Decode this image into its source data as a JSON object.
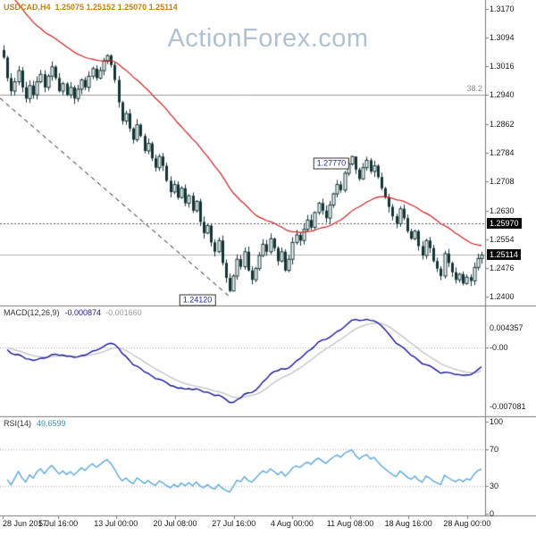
{
  "window": {
    "title_symbol": "USDCAD,H4",
    "title_ohlc": "1.25075 1.25152 1.25070 1.25114",
    "watermark": "ActionForex.com"
  },
  "chart_data": {
    "type": "candlestick",
    "symbol": "USDCAD",
    "timeframe": "H4",
    "quote": {
      "open": "1.25075",
      "high": "1.25152",
      "low": "1.25070",
      "close": "1.25114"
    },
    "y_ticks": [
      "1.3170",
      "1.3094",
      "1.3016",
      "1.2940",
      "1.2862",
      "1.2784",
      "1.2708",
      "1.2630",
      "1.2554",
      "1.2476",
      "1.2400"
    ],
    "x_labels": [
      {
        "text": "28 Jun 2017",
        "f": 0.0055,
        "align": "left"
      },
      {
        "text": "5 Jul 16:00",
        "f": 0.12
      },
      {
        "text": "13 Jul 00:00",
        "f": 0.239
      },
      {
        "text": "20 Jul 08:00",
        "f": 0.361
      },
      {
        "text": "27 Jul 16:00",
        "f": 0.482
      },
      {
        "text": "4 Aug 00:00",
        "f": 0.602
      },
      {
        "text": "11 Aug 08:00",
        "f": 0.722
      },
      {
        "text": "18 Aug 16:00",
        "f": 0.842
      },
      {
        "text": "28 Aug 00:00",
        "f": 0.963
      }
    ],
    "open_first": 1.306,
    "close": [
      1.304,
      1.2985,
      1.295,
      1.2975,
      1.3005,
      1.296,
      1.293,
      1.2965,
      1.294,
      1.2975,
      1.2995,
      1.296,
      1.299,
      1.3015,
      1.2985,
      1.295,
      1.297,
      1.294,
      1.296,
      1.293,
      1.2955,
      1.298,
      1.296,
      1.299,
      1.301,
      1.2985,
      1.3005,
      1.303,
      1.3045,
      1.302,
      1.298,
      1.292,
      1.287,
      1.289,
      1.285,
      1.282,
      1.286,
      1.283,
      1.279,
      1.281,
      1.277,
      1.2745,
      1.2775,
      1.275,
      1.271,
      1.268,
      1.27,
      1.2665,
      1.269,
      1.265,
      1.267,
      1.263,
      1.2655,
      1.26,
      1.257,
      1.259,
      1.2545,
      1.252,
      1.255,
      1.249,
      1.245,
      1.2415,
      1.2455,
      1.25,
      1.248,
      1.252,
      1.247,
      1.2445,
      1.2475,
      1.251,
      1.254,
      1.252,
      1.2555,
      1.253,
      1.2495,
      1.252,
      1.247,
      1.25,
      1.2545,
      1.2565,
      1.255,
      1.258,
      1.2605,
      1.2585,
      1.2625,
      1.265,
      1.263,
      1.261,
      1.2645,
      1.2675,
      1.27,
      1.2685,
      1.273,
      1.2755,
      1.2775,
      1.274,
      1.2715,
      1.2745,
      1.2765,
      1.2735,
      1.275,
      1.272,
      1.269,
      1.2665,
      1.264,
      1.2615,
      1.2595,
      1.2635,
      1.261,
      1.2575,
      1.2555,
      1.2575,
      1.2535,
      1.251,
      1.255,
      1.253,
      1.2495,
      1.2475,
      1.2455,
      1.2515,
      1.249,
      1.2465,
      1.2445,
      1.246,
      1.2435,
      1.2452,
      1.2442,
      1.2478,
      1.2502,
      1.25114
    ],
    "markers": {
      "high": {
        "label": "1.27770",
        "bar": 94,
        "price": 1.2777,
        "dx": -23,
        "dy": 9
      },
      "low": {
        "label": "1.24120",
        "bar": 61,
        "price": 1.2412,
        "dx": -36,
        "dy": 9
      }
    },
    "levels": {
      "fib": {
        "label": "38.2",
        "price": 1.294
      },
      "resistance": {
        "axis_label": "1.25970",
        "price": 1.2597
      },
      "current": {
        "axis_label": "1.25114",
        "price": 1.25114
      }
    },
    "trendline": {
      "x1_f": 0.0,
      "p1": 1.2931,
      "x2_f": 0.475,
      "p2": 1.2398
    },
    "overlays": {
      "ma": {
        "period": 34,
        "seed": 1.325,
        "color": "#d02020"
      }
    },
    "indicators": {
      "macd": {
        "label": "MACD(12,26,9)",
        "value_main": "-0.000874",
        "value_signal": "-0.001660",
        "params": [
          12,
          26,
          9
        ],
        "axis": {
          "max": "0.004357",
          "zero": "-0.00",
          "min": "-0.007081"
        },
        "color_main": "#16169e",
        "color_signal": "#c5c5c5"
      },
      "rsi": {
        "label": "RSI(14)",
        "value": "49.6599",
        "period": 14,
        "axis": [
          "100",
          "70",
          "30",
          "0"
        ],
        "levels": [
          70,
          30
        ],
        "color": "#5aa7dc"
      }
    },
    "colors": {
      "candle": "#143434",
      "border": "#7a7a7a",
      "level_gray": "#9a9a9a",
      "current_line": "#b0b0b0",
      "dotted_level": "#555555",
      "watermark": "#b2c1cf",
      "title": "#c4820e",
      "marker_text": "#2525b0"
    }
  }
}
